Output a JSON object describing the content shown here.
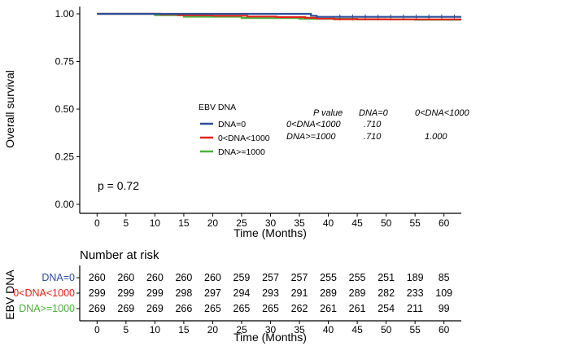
{
  "chart_data": {
    "type": "line",
    "chart_kind": "kaplan-meier survival curve",
    "ylabel": "Overall survival",
    "xlabel": "Time (Months)",
    "yticks": [
      "0.00",
      "0.25",
      "0.50",
      "0.75",
      "1.00"
    ],
    "ylim": [
      0,
      1
    ],
    "xticks": [
      "0",
      "5",
      "10",
      "15",
      "20",
      "25",
      "30",
      "35",
      "40",
      "45",
      "50",
      "55",
      "60"
    ],
    "xlim": [
      -3,
      63
    ],
    "grid": false,
    "pvalue_text": "p = 0.72",
    "legend": {
      "title": "EBV DNA",
      "placement": "center",
      "entries": [
        "DNA=0",
        "0<DNA<1000",
        "DNA>=1000"
      ]
    },
    "series": [
      {
        "name": "DNA=0",
        "color": "#2c4f9a",
        "points": [
          [
            0,
            1.0
          ],
          [
            15,
            1.0
          ],
          [
            37,
            0.99
          ],
          [
            38,
            0.984
          ],
          [
            63,
            0.984
          ]
        ]
      },
      {
        "name": "0<DNA<1000",
        "color": "#e2231a",
        "points": [
          [
            0,
            1.0
          ],
          [
            11,
            0.997
          ],
          [
            14,
            0.993
          ],
          [
            20,
            0.99
          ],
          [
            26,
            0.986
          ],
          [
            31,
            0.983
          ],
          [
            36,
            0.979
          ],
          [
            38,
            0.975
          ],
          [
            41,
            0.972
          ],
          [
            50,
            0.971
          ],
          [
            63,
            0.971
          ]
        ]
      },
      {
        "name": "DNA>=1000",
        "color": "#4caf3c",
        "points": [
          [
            0,
            1.0
          ],
          [
            10,
            0.993
          ],
          [
            15,
            0.985
          ],
          [
            25,
            0.978
          ],
          [
            35,
            0.974
          ],
          [
            45,
            0.971
          ],
          [
            55,
            0.969
          ],
          [
            63,
            0.969
          ]
        ]
      }
    ],
    "pairwise_table": {
      "header": [
        "P value",
        "DNA=0",
        "0<DNA<1000"
      ],
      "rows": [
        [
          "0<DNA<1000",
          ".710",
          ""
        ],
        [
          "DNA>=1000",
          ".710",
          "1.000"
        ]
      ]
    }
  },
  "risk_table": {
    "title": "Number at risk",
    "ylabel": "EBV DNA",
    "xlabel": "Time (Months)",
    "times": [
      "0",
      "5",
      "10",
      "15",
      "20",
      "25",
      "30",
      "35",
      "40",
      "45",
      "50",
      "55",
      "60"
    ],
    "rows": [
      {
        "label": "DNA=0",
        "color": "#2c4f9a",
        "values": [
          "260",
          "260",
          "260",
          "260",
          "260",
          "259",
          "257",
          "257",
          "255",
          "255",
          "251",
          "189",
          "85"
        ]
      },
      {
        "label": "0<DNA<1000",
        "color": "#e2231a",
        "values": [
          "299",
          "299",
          "299",
          "298",
          "297",
          "294",
          "293",
          "291",
          "289",
          "289",
          "282",
          "233",
          "109"
        ]
      },
      {
        "label": "DNA>=1000",
        "color": "#4caf3c",
        "values": [
          "269",
          "269",
          "269",
          "266",
          "265",
          "265",
          "265",
          "262",
          "261",
          "261",
          "254",
          "211",
          "99"
        ]
      }
    ]
  }
}
